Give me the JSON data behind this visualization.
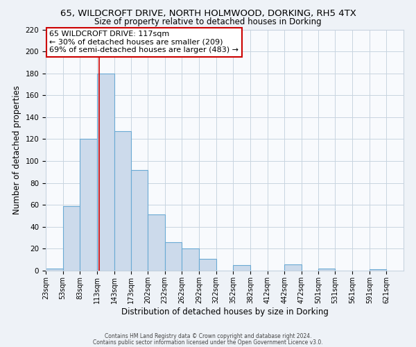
{
  "title_line1": "65, WILDCROFT DRIVE, NORTH HOLMWOOD, DORKING, RH5 4TX",
  "title_line2": "Size of property relative to detached houses in Dorking",
  "xlabel": "Distribution of detached houses by size in Dorking",
  "ylabel": "Number of detached properties",
  "bar_left_edges": [
    23,
    53,
    83,
    113,
    143,
    173,
    202,
    232,
    262,
    292,
    322,
    352,
    382,
    412,
    442,
    472,
    501,
    531,
    561,
    591
  ],
  "bar_heights": [
    2,
    59,
    120,
    180,
    127,
    92,
    51,
    26,
    20,
    11,
    0,
    5,
    0,
    0,
    6,
    0,
    2,
    0,
    0,
    1
  ],
  "bar_widths": [
    30,
    30,
    30,
    30,
    30,
    29,
    30,
    30,
    30,
    30,
    30,
    30,
    30,
    30,
    30,
    29,
    30,
    30,
    30,
    30
  ],
  "x_tick_labels": [
    "23sqm",
    "53sqm",
    "83sqm",
    "113sqm",
    "143sqm",
    "173sqm",
    "202sqm",
    "232sqm",
    "262sqm",
    "292sqm",
    "322sqm",
    "352sqm",
    "382sqm",
    "412sqm",
    "442sqm",
    "472sqm",
    "501sqm",
    "531sqm",
    "561sqm",
    "591sqm",
    "621sqm"
  ],
  "x_tick_positions": [
    23,
    53,
    83,
    113,
    143,
    173,
    202,
    232,
    262,
    292,
    322,
    352,
    382,
    412,
    442,
    472,
    501,
    531,
    561,
    591,
    621
  ],
  "ylim": [
    0,
    220
  ],
  "yticks": [
    0,
    20,
    40,
    60,
    80,
    100,
    120,
    140,
    160,
    180,
    200,
    220
  ],
  "bar_color": "#ccdaeb",
  "bar_edge_color": "#6aaad4",
  "red_line_x": 117,
  "annotation_line1": "65 WILDCROFT DRIVE: 117sqm",
  "annotation_line2": "← 30% of detached houses are smaller (209)",
  "annotation_line3": "69% of semi-detached houses are larger (483) →",
  "footer_line1": "Contains HM Land Registry data © Crown copyright and database right 2024.",
  "footer_line2": "Contains public sector information licensed under the Open Government Licence v3.0.",
  "background_color": "#eef2f7",
  "plot_bg_color": "#f8fafd",
  "grid_color": "#c8d4e0"
}
